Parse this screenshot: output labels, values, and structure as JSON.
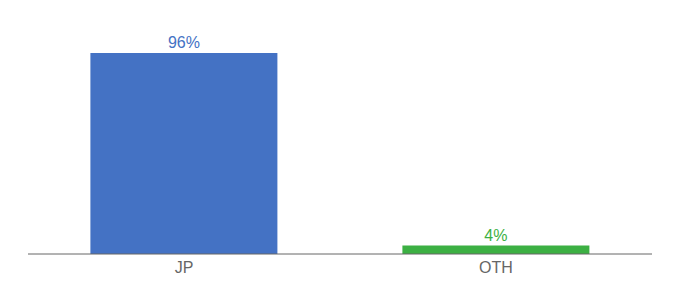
{
  "chart_data": {
    "type": "bar",
    "categories": [
      "JP",
      "OTH"
    ],
    "values": [
      96,
      4
    ],
    "value_labels": [
      "96%",
      "4%"
    ],
    "colors": [
      "#4472c4",
      "#3cb043"
    ],
    "ylim": [
      0,
      106
    ],
    "grid": false,
    "data_labels": true,
    "tick_labels": "x"
  }
}
